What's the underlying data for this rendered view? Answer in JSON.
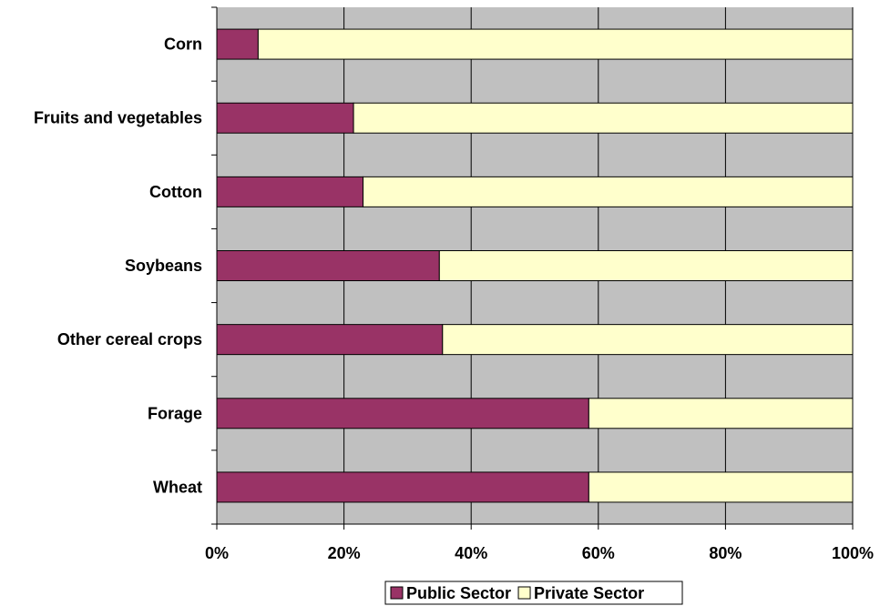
{
  "chart_data": {
    "type": "bar",
    "orientation": "horizontal",
    "stacked": "percent",
    "categories": [
      "Corn",
      "Fruits and vegetables",
      "Cotton",
      "Soybeans",
      "Other cereal crops",
      "Forage",
      "Wheat"
    ],
    "series": [
      {
        "name": "Public Sector",
        "color": "#993366",
        "values": [
          6.5,
          21.5,
          23,
          35,
          35.5,
          58.5,
          58.5
        ]
      },
      {
        "name": "Private Sector",
        "color": "#FFFFCC",
        "values": [
          93.5,
          78.5,
          77,
          65,
          64.5,
          41.5,
          41.5
        ]
      }
    ],
    "x_ticks": [
      "0%",
      "20%",
      "40%",
      "60%",
      "80%",
      "100%"
    ],
    "xlim": [
      0,
      100
    ],
    "grid": true,
    "plot_background": "#C0C0C0",
    "legend_position": "bottom"
  }
}
